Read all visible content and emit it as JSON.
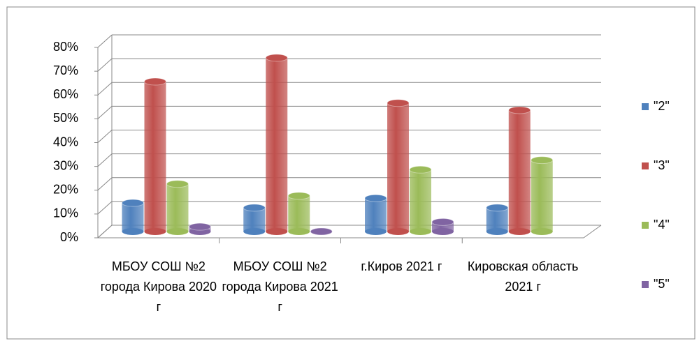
{
  "chart_data": {
    "type": "bar3d",
    "categories": [
      "МБОУ СОШ №2 города Кирова 2020 г",
      "МБОУ СОШ №2 города Кирова 2021 г",
      "г.Киров 2021 г",
      "Кировская область 2021 г"
    ],
    "series": [
      {
        "name": "\"2\"",
        "color": "#4f81bd",
        "values": [
          12,
          10,
          14,
          10
        ]
      },
      {
        "name": "\"3\"",
        "color": "#c0504d",
        "values": [
          63,
          73,
          54,
          51
        ]
      },
      {
        "name": "\"4\"",
        "color": "#9bbb59",
        "values": [
          20,
          15,
          26,
          30
        ]
      },
      {
        "name": "\"5\"",
        "color": "#8064a2",
        "values": [
          2,
          0,
          4,
          null
        ]
      }
    ],
    "ylim": [
      0,
      80
    ],
    "yticks": [
      {
        "value": 0,
        "label": "0%"
      },
      {
        "value": 10,
        "label": "10%"
      },
      {
        "value": 20,
        "label": "20%"
      },
      {
        "value": 30,
        "label": "30%"
      },
      {
        "value": 40,
        "label": "40%"
      },
      {
        "value": 50,
        "label": "50%"
      },
      {
        "value": 60,
        "label": "60%"
      },
      {
        "value": 70,
        "label": "70%"
      },
      {
        "value": 80,
        "label": "80%"
      }
    ],
    "grid": true,
    "legend": "right"
  }
}
